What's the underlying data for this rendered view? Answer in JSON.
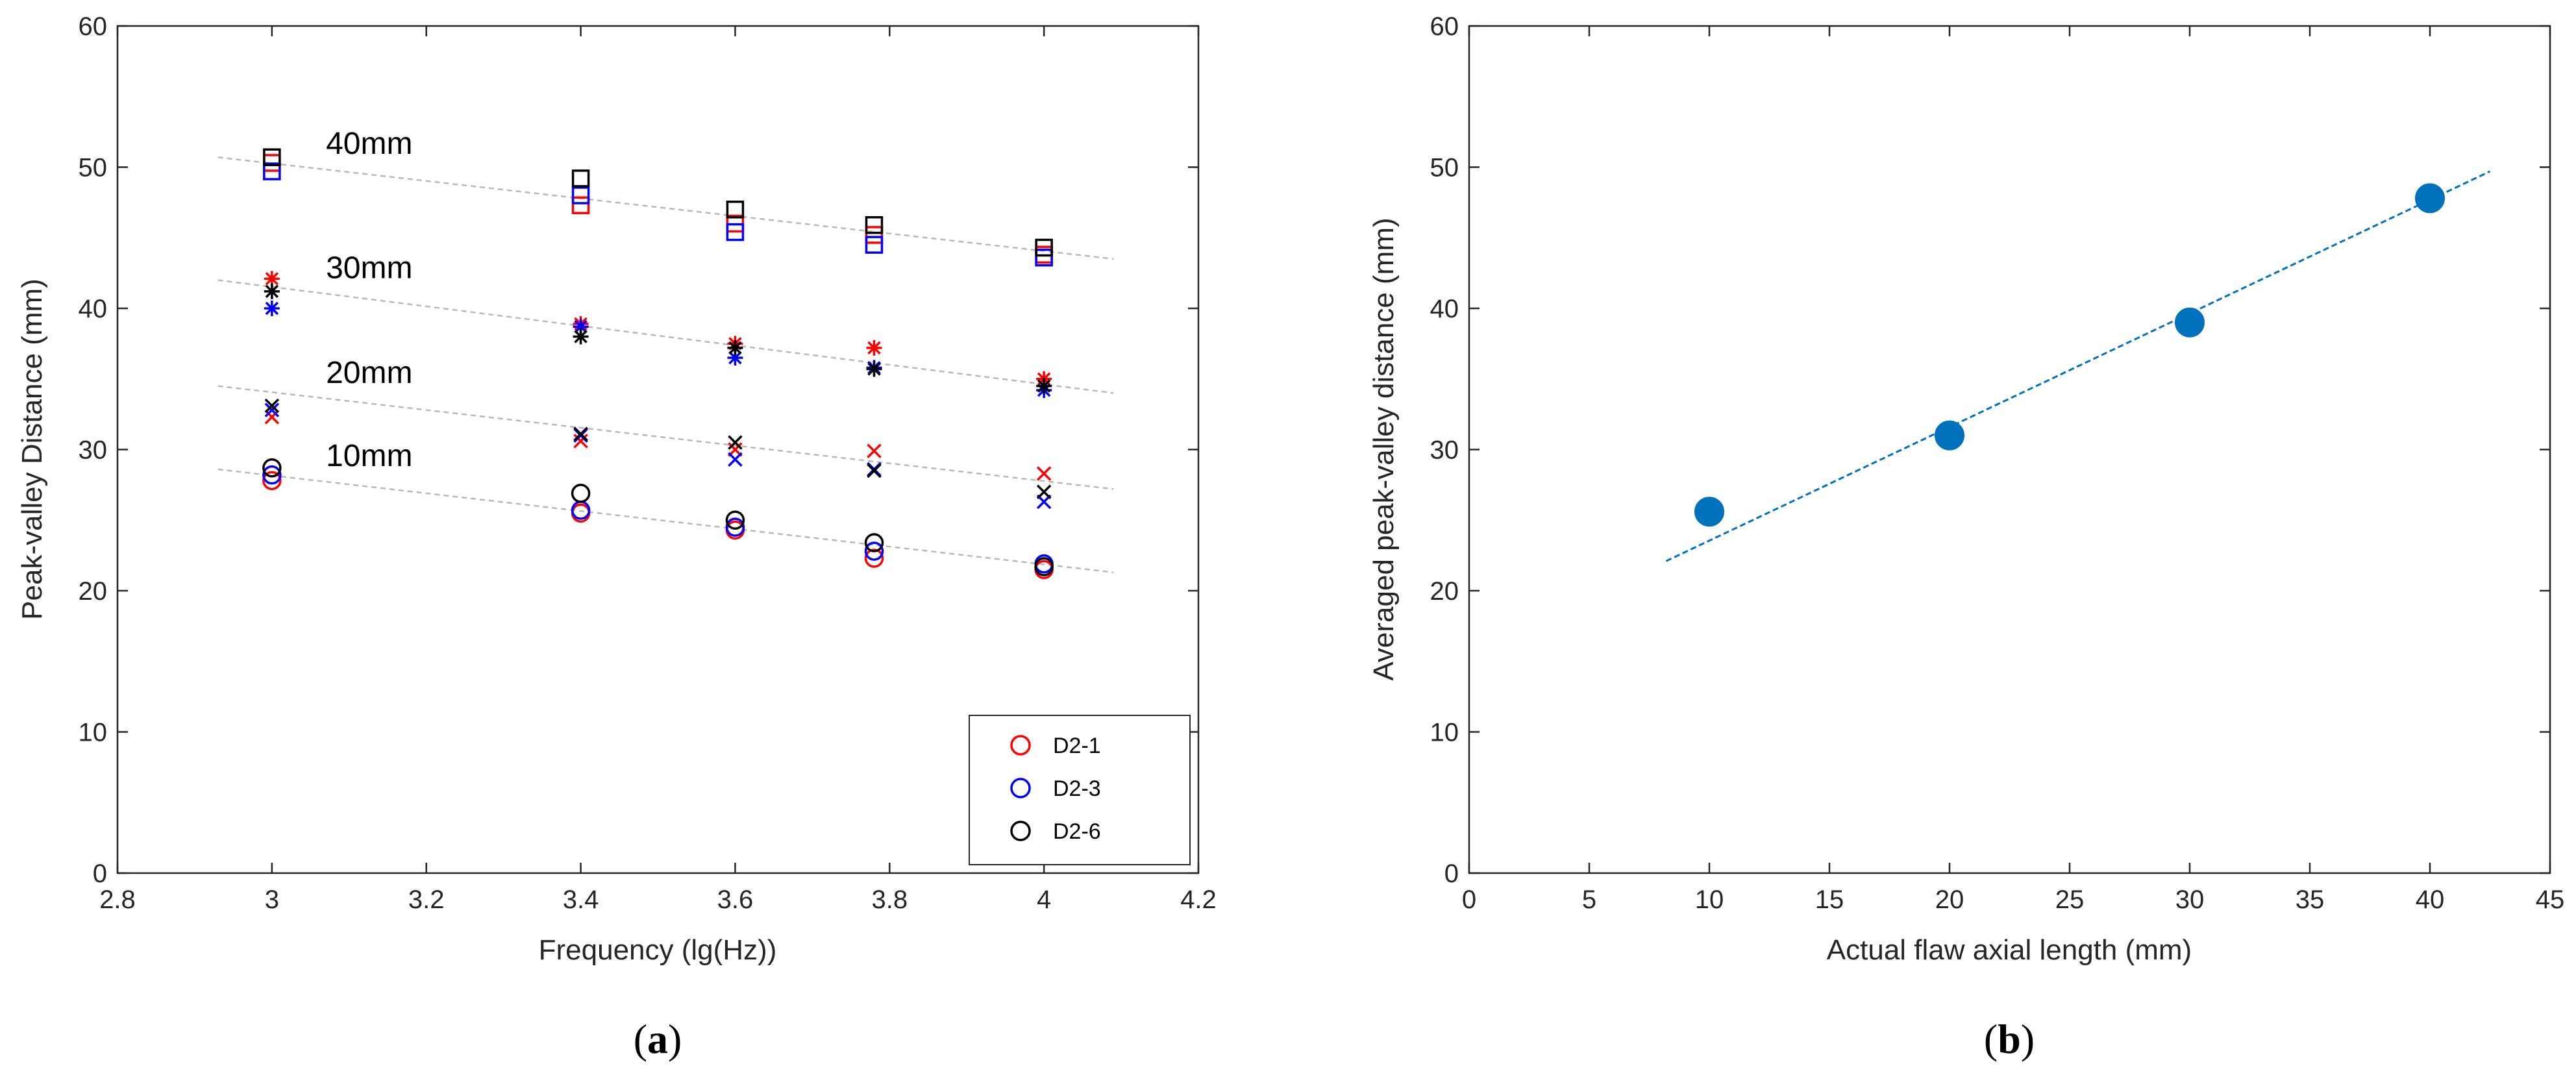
{
  "chart_data": [
    {
      "type": "scatter",
      "panel_label": {
        "open": "(",
        "letter": "a",
        "close": ")"
      },
      "title": "",
      "xlabel": "Frequency (lg(Hz))",
      "ylabel": "Peak-valley Distance (mm)",
      "xlim": [
        2.8,
        4.2
      ],
      "ylim": [
        0,
        60
      ],
      "xticks": [
        2.8,
        3,
        3.2,
        3.4,
        3.6,
        3.8,
        4,
        4.2
      ],
      "xtick_labels": [
        "2.8",
        "3",
        "3.2",
        "3.4",
        "3.6",
        "3.8",
        "4",
        "4.2"
      ],
      "yticks": [
        0,
        10,
        20,
        30,
        40,
        50,
        60
      ],
      "ytick_labels": [
        "0",
        "10",
        "20",
        "30",
        "40",
        "50",
        "60"
      ],
      "grid": false,
      "legend_position": "bottom-right",
      "legend": [
        {
          "name": "D2-1",
          "color": "#ff0000",
          "marker": "circle"
        },
        {
          "name": "D2-3",
          "color": "#0000ff",
          "marker": "circle"
        },
        {
          "name": "D2-6",
          "color": "#000000",
          "marker": "circle"
        }
      ],
      "x": [
        3,
        3.4,
        3.6,
        3.78,
        4
      ],
      "groups": [
        {
          "label": "40mm",
          "marker": "square",
          "trend": {
            "x": [
              2.93,
              4.09
            ],
            "y": [
              50.7,
              43.5
            ]
          },
          "series": [
            {
              "name": "D2-1",
              "color": "#ff0000",
              "values": [
                50.3,
                47.3,
                46.0,
                45.2,
                43.8
              ]
            },
            {
              "name": "D2-3",
              "color": "#0000ff",
              "values": [
                49.7,
                48.0,
                45.4,
                44.5,
                43.6
              ]
            },
            {
              "name": "D2-6",
              "color": "#000000",
              "values": [
                50.7,
                49.2,
                47.0,
                45.9,
                44.3
              ]
            }
          ]
        },
        {
          "label": "30mm",
          "marker": "asterisk",
          "trend": {
            "x": [
              2.93,
              4.09
            ],
            "y": [
              42.0,
              34.0
            ]
          },
          "series": [
            {
              "name": "D2-1",
              "color": "#ff0000",
              "values": [
                42.1,
                38.9,
                37.5,
                37.2,
                35.0
              ]
            },
            {
              "name": "D2-3",
              "color": "#0000ff",
              "values": [
                40.0,
                38.7,
                36.5,
                35.8,
                34.2
              ]
            },
            {
              "name": "D2-6",
              "color": "#000000",
              "values": [
                41.2,
                38.0,
                37.2,
                35.7,
                34.5
              ]
            }
          ]
        },
        {
          "label": "20mm",
          "marker": "x",
          "trend": {
            "x": [
              2.93,
              4.09
            ],
            "y": [
              34.5,
              27.2
            ]
          },
          "series": [
            {
              "name": "D2-1",
              "color": "#ff0000",
              "values": [
                32.3,
                30.6,
                30.0,
                29.9,
                28.3
              ]
            },
            {
              "name": "D2-3",
              "color": "#0000ff",
              "values": [
                32.8,
                31.0,
                29.3,
                28.6,
                26.3
              ]
            },
            {
              "name": "D2-6",
              "color": "#000000",
              "values": [
                33.1,
                31.1,
                30.5,
                28.5,
                27.0
              ]
            }
          ]
        },
        {
          "label": "10mm",
          "marker": "circle",
          "trend": {
            "x": [
              2.93,
              4.09
            ],
            "y": [
              28.6,
              21.3
            ]
          },
          "series": [
            {
              "name": "D2-1",
              "color": "#ff0000",
              "values": [
                27.8,
                25.5,
                24.3,
                22.3,
                21.5
              ]
            },
            {
              "name": "D2-3",
              "color": "#0000ff",
              "values": [
                28.2,
                25.7,
                24.5,
                22.8,
                21.9
              ]
            },
            {
              "name": "D2-6",
              "color": "#000000",
              "values": [
                28.7,
                26.9,
                25.0,
                23.4,
                21.7
              ]
            }
          ]
        }
      ]
    },
    {
      "type": "scatter",
      "panel_label": {
        "open": "(",
        "letter": "b",
        "close": ")"
      },
      "title": "",
      "xlabel": "Actual flaw axial length (mm)",
      "ylabel": "Averaged peak-valley distance (mm)",
      "xlim": [
        0,
        45
      ],
      "ylim": [
        0,
        60
      ],
      "xticks": [
        0,
        5,
        10,
        15,
        20,
        25,
        30,
        35,
        40,
        45
      ],
      "xtick_labels": [
        "0",
        "5",
        "10",
        "15",
        "20",
        "25",
        "30",
        "35",
        "40",
        "45"
      ],
      "yticks": [
        0,
        10,
        20,
        30,
        40,
        50,
        60
      ],
      "ytick_labels": [
        "0",
        "10",
        "20",
        "30",
        "40",
        "50",
        "60"
      ],
      "grid": false,
      "color": "#0072bd",
      "series": [
        {
          "name": "Averaged peak-valley distance",
          "x": [
            10,
            20,
            30,
            40
          ],
          "y": [
            25.6,
            31.0,
            39.0,
            47.8
          ]
        }
      ],
      "fit_line": {
        "x": [
          8.2,
          42.5
        ],
        "y": [
          22.1,
          49.7
        ]
      }
    }
  ]
}
